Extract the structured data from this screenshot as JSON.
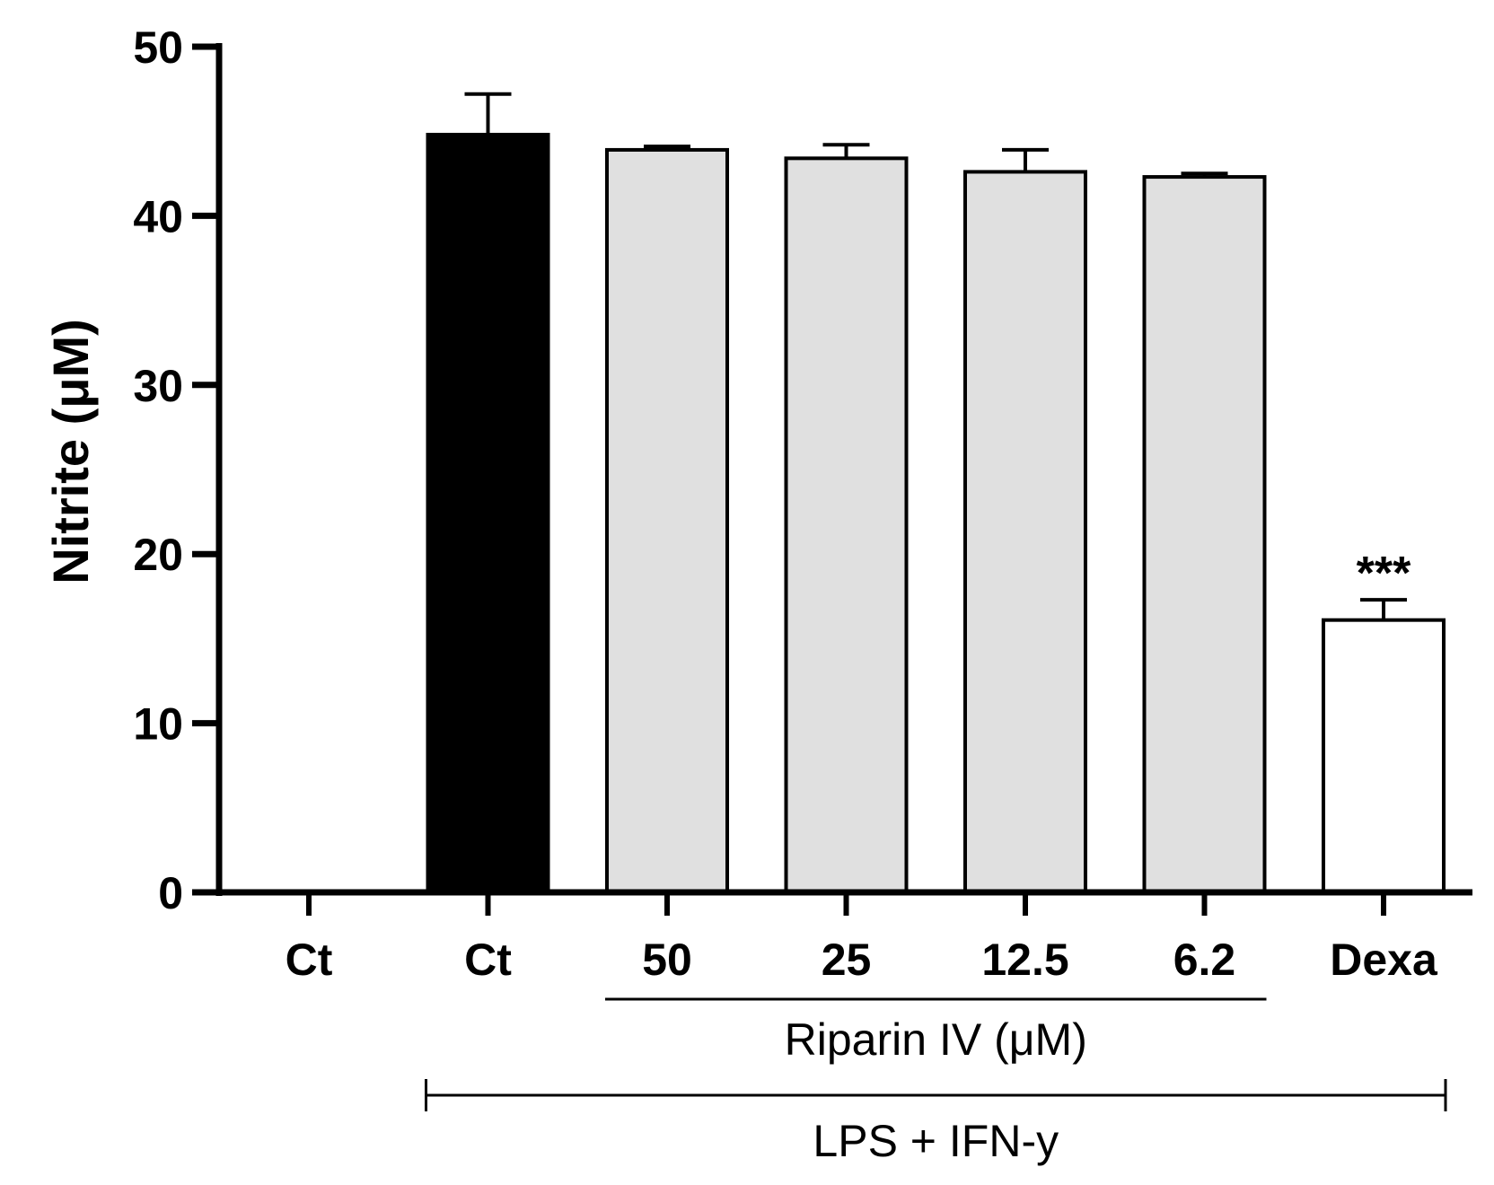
{
  "chart_data": {
    "type": "bar",
    "categories": [
      "Ct",
      "Ct",
      "50",
      "25",
      "12.5",
      "6.2",
      "Dexa"
    ],
    "values": [
      0,
      44.8,
      43.9,
      43.4,
      42.6,
      42.3,
      16.1
    ],
    "errors": [
      0,
      2.4,
      0.2,
      0.8,
      1.3,
      0.2,
      1.2
    ],
    "bar_colors": [
      "#ffffff",
      "#000000",
      "#e0e0e0",
      "#e0e0e0",
      "#e0e0e0",
      "#e0e0e0",
      "#ffffff"
    ],
    "ylabel": "Nitrite (μM)",
    "ylim": [
      0,
      50
    ],
    "yticks": [
      "0",
      "10",
      "20",
      "30",
      "40",
      "50"
    ],
    "annotations": [
      {
        "category_index": 6,
        "text": "***"
      }
    ],
    "groups": [
      {
        "label": "Riparin IV (μM)",
        "from": 2,
        "to": 5,
        "style": "underline"
      },
      {
        "label": "LPS + IFN-y",
        "from": 1,
        "to": 6,
        "style": "bracket"
      }
    ]
  }
}
